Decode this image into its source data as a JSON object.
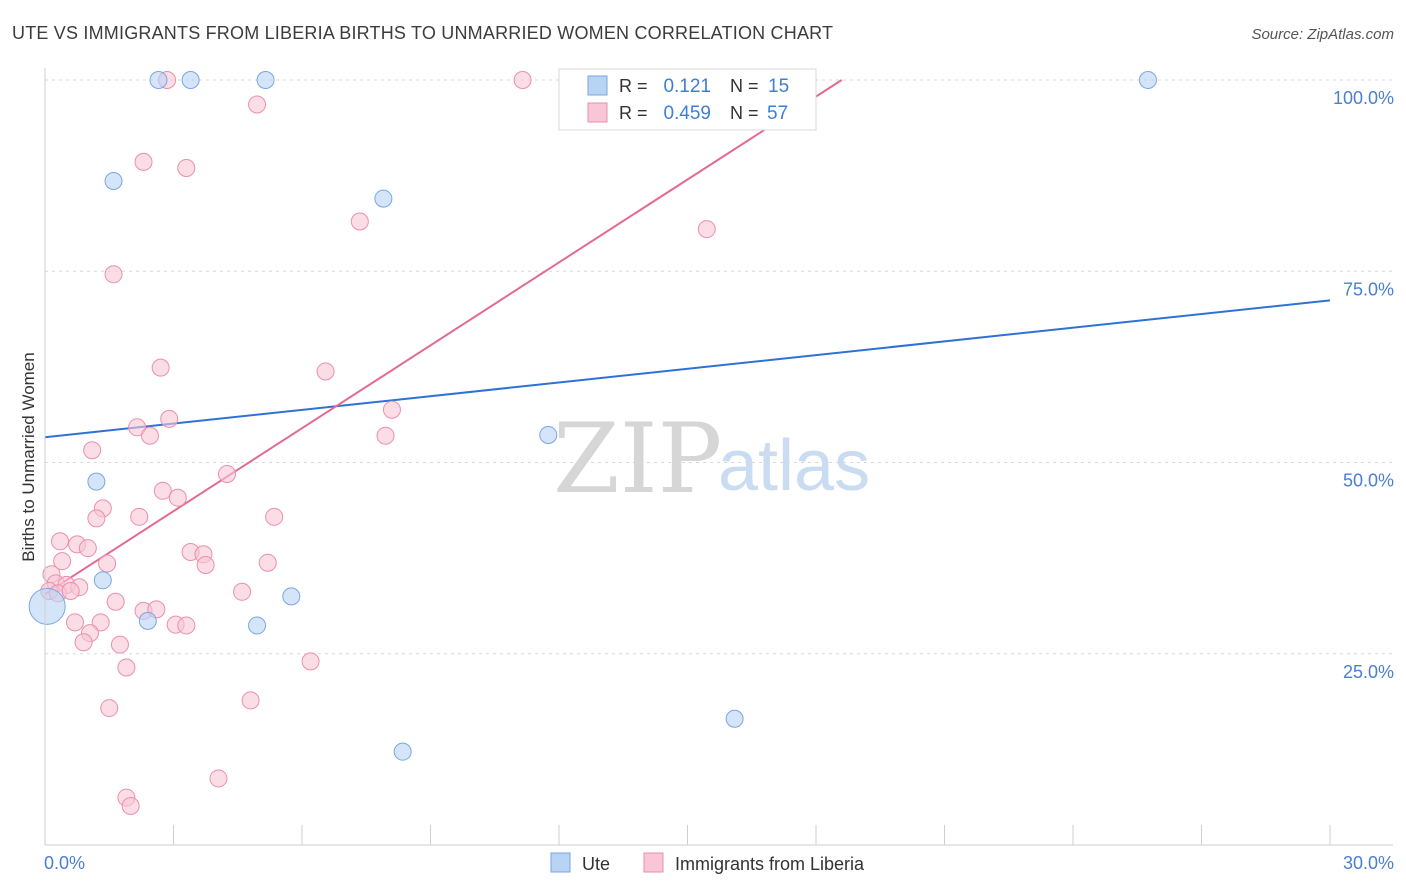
{
  "title": "UTE VS IMMIGRANTS FROM LIBERIA BIRTHS TO UNMARRIED WOMEN CORRELATION CHART",
  "source": "Source: ZipAtlas.com",
  "watermark": {
    "part1": "ZIP",
    "part2": "atlas"
  },
  "colors": {
    "ute_fill": "#b9d3f5",
    "ute_stroke": "#7aa6e0",
    "ute_line": "#2f72d6",
    "lib_fill": "#f8c6d6",
    "lib_stroke": "#eb8fae",
    "lib_line": "#e36a96",
    "grid": "#d8d8d8",
    "tick_label": "#4a7fd0"
  },
  "legend_top": [
    {
      "r_label": "R =",
      "r_value": "0.121",
      "n_label": "N =",
      "n_value": "15"
    },
    {
      "r_label": "R =",
      "r_value": "0.459",
      "n_label": "N =",
      "n_value": "57"
    }
  ],
  "legend_bottom": [
    "Ute",
    "Immigrants from Liberia"
  ],
  "chart_data": {
    "type": "scatter",
    "title": "UTE VS IMMIGRANTS FROM LIBERIA BIRTHS TO UNMARRIED WOMEN CORRELATION CHART",
    "xlabel": "",
    "ylabel": "Births to Unmarried Women",
    "xlim": [
      0,
      30
    ],
    "ylim": [
      0,
      100
    ],
    "x_tick_labels": [
      "0.0%",
      "30.0%"
    ],
    "y_ticks": [
      25,
      50,
      75,
      100
    ],
    "y_tick_labels": [
      "25.0%",
      "50.0%",
      "75.0%",
      "100.0%"
    ],
    "series": [
      {
        "name": "Ute",
        "r": 0.121,
        "n": 15,
        "trend": {
          "x": [
            0,
            30
          ],
          "y": [
            53.3,
            71.2
          ]
        },
        "points": [
          {
            "x": 2.65,
            "y": 100.0
          },
          {
            "x": 3.4,
            "y": 100.0
          },
          {
            "x": 5.15,
            "y": 100.0
          },
          {
            "x": 25.75,
            "y": 100.0
          },
          {
            "x": 1.6,
            "y": 86.8
          },
          {
            "x": 7.9,
            "y": 84.5
          },
          {
            "x": 11.75,
            "y": 53.6
          },
          {
            "x": 1.2,
            "y": 47.5
          },
          {
            "x": 1.35,
            "y": 34.6
          },
          {
            "x": 5.75,
            "y": 32.5
          },
          {
            "x": 2.4,
            "y": 29.3
          },
          {
            "x": 4.95,
            "y": 28.7
          },
          {
            "x": 0.05,
            "y": 31.2
          },
          {
            "x": 16.1,
            "y": 16.5
          },
          {
            "x": 8.35,
            "y": 12.2
          }
        ]
      },
      {
        "name": "Immigrants from Liberia",
        "r": 0.459,
        "n": 57,
        "trend": {
          "x": [
            0,
            18.6
          ],
          "y": [
            32.8,
            100
          ]
        },
        "points": [
          {
            "x": 2.85,
            "y": 100.0
          },
          {
            "x": 11.15,
            "y": 100.0
          },
          {
            "x": 4.95,
            "y": 96.8
          },
          {
            "x": 2.3,
            "y": 89.3
          },
          {
            "x": 3.3,
            "y": 88.5
          },
          {
            "x": 7.35,
            "y": 81.5
          },
          {
            "x": 15.45,
            "y": 80.5
          },
          {
            "x": 1.6,
            "y": 74.6
          },
          {
            "x": 2.7,
            "y": 62.4
          },
          {
            "x": 6.55,
            "y": 61.9
          },
          {
            "x": 2.9,
            "y": 55.7
          },
          {
            "x": 8.1,
            "y": 56.9
          },
          {
            "x": 2.15,
            "y": 54.6
          },
          {
            "x": 2.45,
            "y": 53.5
          },
          {
            "x": 7.95,
            "y": 53.5
          },
          {
            "x": 1.1,
            "y": 51.6
          },
          {
            "x": 4.25,
            "y": 48.5
          },
          {
            "x": 2.75,
            "y": 46.3
          },
          {
            "x": 3.1,
            "y": 45.4
          },
          {
            "x": 1.35,
            "y": 44.0
          },
          {
            "x": 1.2,
            "y": 42.7
          },
          {
            "x": 2.2,
            "y": 42.9
          },
          {
            "x": 5.35,
            "y": 42.9
          },
          {
            "x": 0.35,
            "y": 39.7
          },
          {
            "x": 0.75,
            "y": 39.3
          },
          {
            "x": 1.0,
            "y": 38.8
          },
          {
            "x": 3.4,
            "y": 38.3
          },
          {
            "x": 3.7,
            "y": 38.0
          },
          {
            "x": 0.4,
            "y": 37.1
          },
          {
            "x": 1.45,
            "y": 36.8
          },
          {
            "x": 3.75,
            "y": 36.6
          },
          {
            "x": 5.2,
            "y": 36.9
          },
          {
            "x": 0.15,
            "y": 35.4
          },
          {
            "x": 0.25,
            "y": 34.2
          },
          {
            "x": 0.5,
            "y": 34.0
          },
          {
            "x": 0.8,
            "y": 33.7
          },
          {
            "x": 0.1,
            "y": 33.2
          },
          {
            "x": 0.3,
            "y": 32.9
          },
          {
            "x": 0.6,
            "y": 33.2
          },
          {
            "x": 4.6,
            "y": 33.1
          },
          {
            "x": 1.65,
            "y": 31.8
          },
          {
            "x": 2.3,
            "y": 30.6
          },
          {
            "x": 2.6,
            "y": 30.8
          },
          {
            "x": 0.7,
            "y": 29.1
          },
          {
            "x": 1.3,
            "y": 29.1
          },
          {
            "x": 3.05,
            "y": 28.8
          },
          {
            "x": 3.3,
            "y": 28.7
          },
          {
            "x": 1.05,
            "y": 27.7
          },
          {
            "x": 0.9,
            "y": 26.5
          },
          {
            "x": 1.75,
            "y": 26.2
          },
          {
            "x": 1.9,
            "y": 23.2
          },
          {
            "x": 6.2,
            "y": 24.0
          },
          {
            "x": 4.8,
            "y": 18.9
          },
          {
            "x": 1.5,
            "y": 17.9
          },
          {
            "x": 4.05,
            "y": 8.7
          },
          {
            "x": 1.9,
            "y": 6.2
          },
          {
            "x": 2.0,
            "y": 5.1
          }
        ]
      }
    ]
  }
}
